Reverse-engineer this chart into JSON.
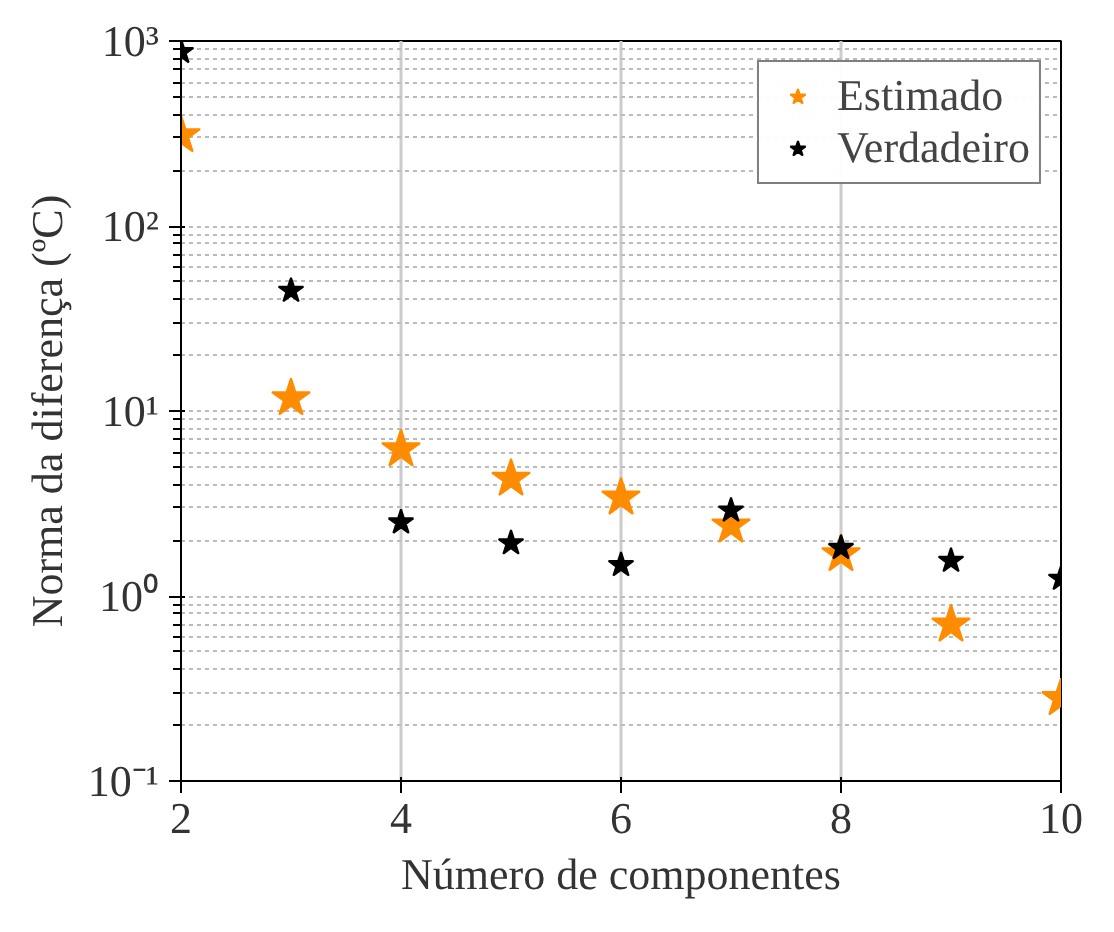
{
  "chart_data": {
    "type": "scatter",
    "xlabel": "Número de componentes",
    "ylabel": "Norma da diferença (ºC)",
    "x": [
      2,
      3,
      4,
      5,
      6,
      7,
      8,
      9,
      10
    ],
    "series": [
      {
        "name": "Estimado",
        "color": "#ff8c00",
        "values": [
          309,
          11.7,
          6.2,
          4.3,
          3.4,
          2.4,
          1.68,
          0.7,
          0.28
        ]
      },
      {
        "name": "Verdadeiro",
        "color": "#000000",
        "values": [
          873,
          44.7,
          2.5,
          1.93,
          1.47,
          2.9,
          1.82,
          1.55,
          1.24
        ]
      }
    ],
    "log": "y",
    "xlim": [
      2,
      10
    ],
    "xticks": [
      2,
      4,
      6,
      8,
      10
    ],
    "ylim": [
      0.1,
      1000
    ],
    "yticks": [
      {
        "value": 0.1,
        "label": "10⁻¹"
      },
      {
        "value": 1,
        "label": "10⁰"
      },
      {
        "value": 10,
        "label": "10¹"
      },
      {
        "value": 100,
        "label": "10²"
      },
      {
        "value": 1000,
        "label": "10³"
      }
    ],
    "grid": true,
    "legend": "top right",
    "marker": "star"
  }
}
